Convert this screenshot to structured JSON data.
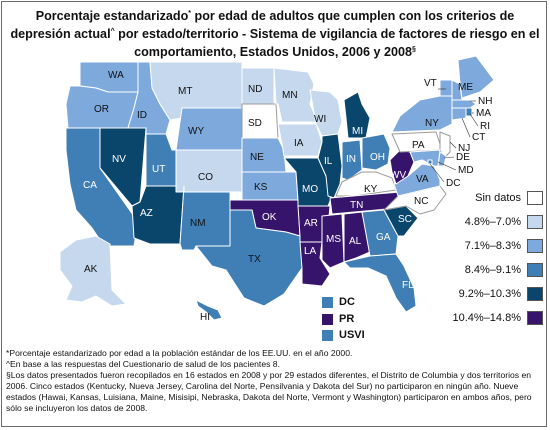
{
  "title": {
    "part1": "Porcentaje estandarizado",
    "mark1": "*",
    "part2": " por edad de adultos que cumplen con los criterios de depresión actual",
    "mark2": "^",
    "part3": " por estado/territorio - Sistema de vigilancia de factores de riesgo en el comportamiento, Estados Unidos, 2006 y 2008",
    "mark3": "§"
  },
  "colors": {
    "no_data": "#ffffff",
    "c1": "#c5d8ee",
    "c2": "#7ea9dc",
    "c3": "#3f7fb6",
    "c4": "#0a466c",
    "c5": "#37146b",
    "border": "#ffffff",
    "text_dark": "#111111",
    "text_light": "#ffffff"
  },
  "legend": [
    {
      "label": "Sin datos",
      "color_key": "no_data"
    },
    {
      "label": "4.8%–7.0%",
      "color_key": "c1"
    },
    {
      "label": "7.1%–8.3%",
      "color_key": "c2"
    },
    {
      "label": "8.4%–9.1%",
      "color_key": "c3"
    },
    {
      "label": "9.2%–10.3%",
      "color_key": "c4"
    },
    {
      "label": "10.4%–14.8%",
      "color_key": "c5"
    }
  ],
  "states": [
    {
      "abbr": "WA",
      "class": "c2"
    },
    {
      "abbr": "OR",
      "class": "c2"
    },
    {
      "abbr": "CA",
      "class": "c3"
    },
    {
      "abbr": "NV",
      "class": "c4"
    },
    {
      "abbr": "ID",
      "class": "c2"
    },
    {
      "abbr": "MT",
      "class": "c1"
    },
    {
      "abbr": "WY",
      "class": "c2"
    },
    {
      "abbr": "UT",
      "class": "c3"
    },
    {
      "abbr": "AZ",
      "class": "c4"
    },
    {
      "abbr": "CO",
      "class": "c1"
    },
    {
      "abbr": "NM",
      "class": "c3"
    },
    {
      "abbr": "ND",
      "class": "c1"
    },
    {
      "abbr": "SD",
      "class": "no_data"
    },
    {
      "abbr": "NE",
      "class": "c2"
    },
    {
      "abbr": "KS",
      "class": "c2"
    },
    {
      "abbr": "OK",
      "class": "c5"
    },
    {
      "abbr": "TX",
      "class": "c3"
    },
    {
      "abbr": "MN",
      "class": "c1"
    },
    {
      "abbr": "IA",
      "class": "c1"
    },
    {
      "abbr": "MO",
      "class": "c4"
    },
    {
      "abbr": "AR",
      "class": "c5"
    },
    {
      "abbr": "LA",
      "class": "c5"
    },
    {
      "abbr": "WI",
      "class": "c1"
    },
    {
      "abbr": "IL",
      "class": "c4"
    },
    {
      "abbr": "MI",
      "class": "c4"
    },
    {
      "abbr": "IN",
      "class": "c3"
    },
    {
      "abbr": "OH",
      "class": "c3"
    },
    {
      "abbr": "KY",
      "class": "no_data"
    },
    {
      "abbr": "TN",
      "class": "c5"
    },
    {
      "abbr": "MS",
      "class": "c5"
    },
    {
      "abbr": "AL",
      "class": "c5"
    },
    {
      "abbr": "GA",
      "class": "c3"
    },
    {
      "abbr": "FL",
      "class": "c3"
    },
    {
      "abbr": "SC",
      "class": "c4"
    },
    {
      "abbr": "NC",
      "class": "no_data"
    },
    {
      "abbr": "VA",
      "class": "c2"
    },
    {
      "abbr": "WV",
      "class": "c5"
    },
    {
      "abbr": "PA",
      "class": "no_data"
    },
    {
      "abbr": "NY",
      "class": "c2"
    },
    {
      "abbr": "VT",
      "class": "c2"
    },
    {
      "abbr": "NH",
      "class": "c2"
    },
    {
      "abbr": "ME",
      "class": "c2"
    },
    {
      "abbr": "MA",
      "class": "c2"
    },
    {
      "abbr": "RI",
      "class": "c3"
    },
    {
      "abbr": "CT",
      "class": "c2"
    },
    {
      "abbr": "NJ",
      "class": "no_data"
    },
    {
      "abbr": "DE",
      "class": "c2"
    },
    {
      "abbr": "MD",
      "class": "c2"
    },
    {
      "abbr": "DC",
      "class": "c3"
    },
    {
      "abbr": "AK",
      "class": "c1"
    },
    {
      "abbr": "HI",
      "class": "c3"
    }
  ],
  "territories": [
    {
      "abbr": "DC",
      "class": "c3"
    },
    {
      "abbr": "PR",
      "class": "c5"
    },
    {
      "abbr": "USVI",
      "class": "c3"
    }
  ],
  "footnotes": [
    "*Porcentaje estandarizado por edad a la población estándar de los EE.UU. en el año 2000.",
    "^En base a las respuestas del Cuestionario de salud de los pacientes 8.",
    "§Los datos presentados fueron recopilados en 16 estados en 2008 y por 29 estados diferentes, el Distrito de Columbia y dos territorios en 2006. Cinco estados (Kentucky, Nueva Jersey, Carolina del Norte, Pensilvania y Dakota del Sur) no participaron en ningún año. Nueve estados (Hawai, Kansas, Luisiana, Maine, Misisipi, Nebraska, Dakota del Norte, Vermont y Washington) participaron en ambos años, pero sólo se incluyeron los datos de 2008."
  ]
}
